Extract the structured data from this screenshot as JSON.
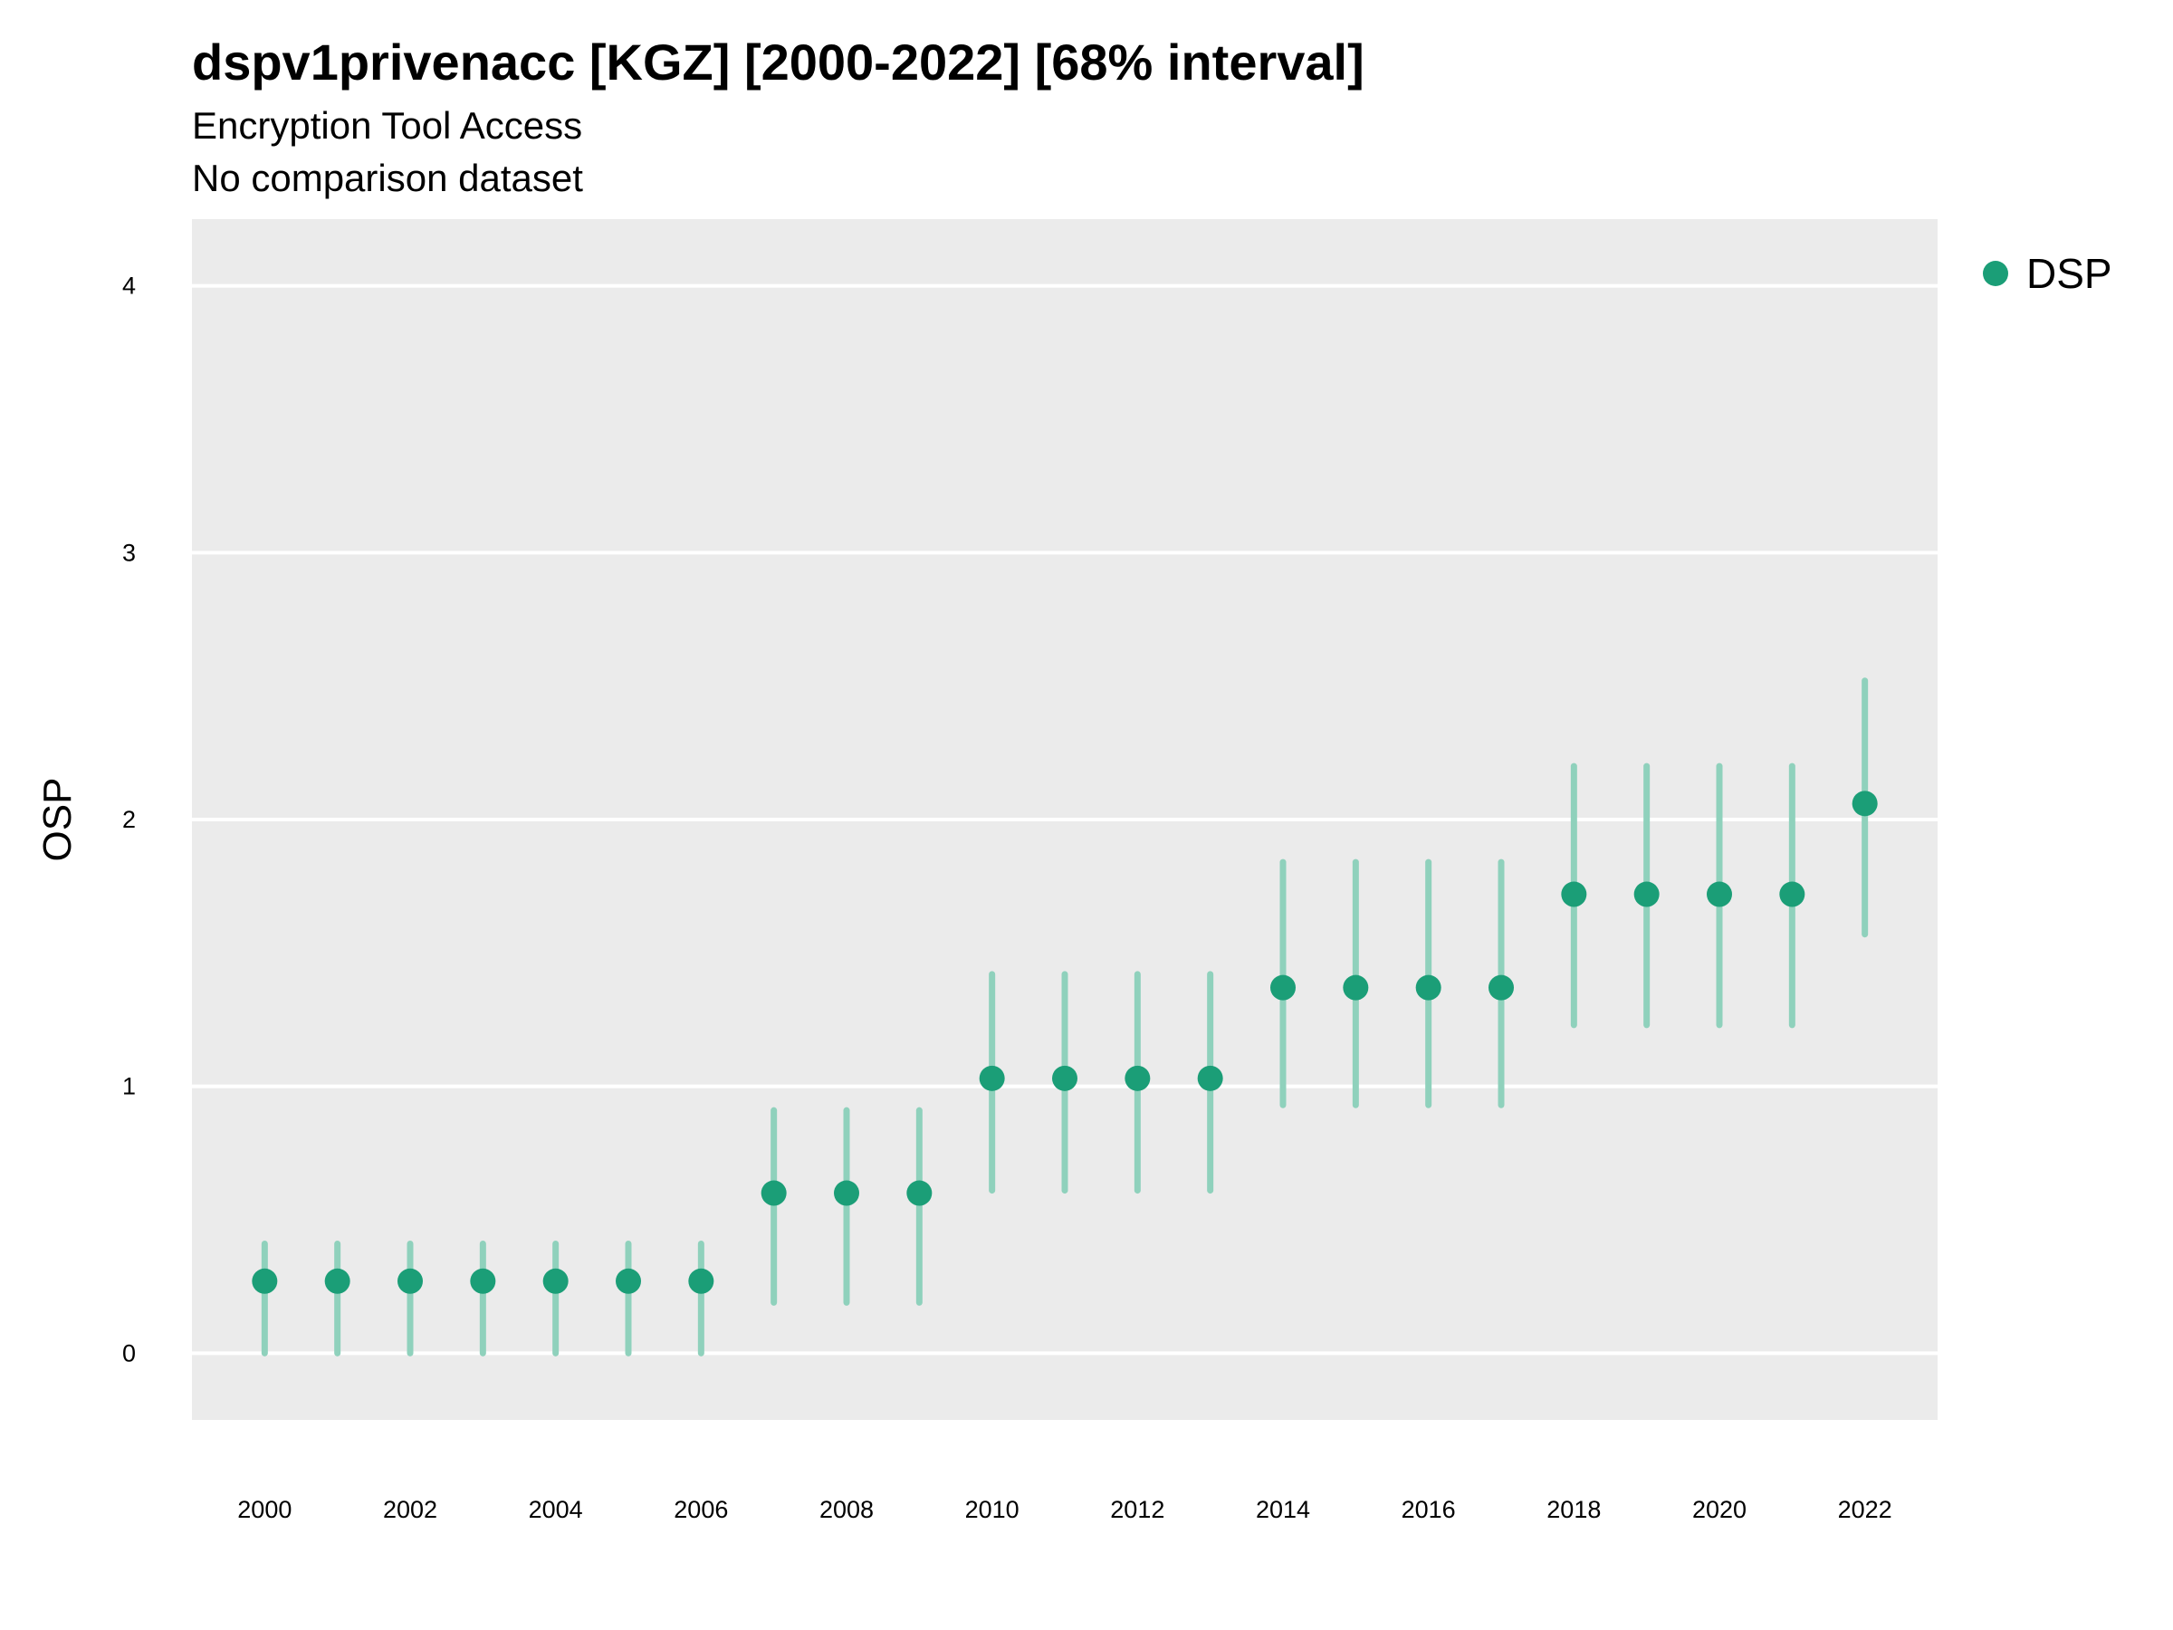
{
  "chart_data": {
    "type": "scatter",
    "title": "dspv1privenacc [KGZ] [2000-2022] [68% interval]",
    "subtitle": [
      "Encryption Tool Access",
      "No comparison dataset"
    ],
    "xlabel": "",
    "ylabel": "OSP",
    "x_ticks": [
      2000,
      2002,
      2004,
      2006,
      2008,
      2010,
      2012,
      2014,
      2016,
      2018,
      2020,
      2022
    ],
    "y_ticks": [
      0,
      1,
      2,
      3,
      4
    ],
    "xlim": [
      1999,
      2023
    ],
    "ylim": [
      -0.25,
      4.25
    ],
    "grid": true,
    "legend_position": "right",
    "colors": {
      "point": "#1b9e77",
      "interval": "#8fd1bc",
      "panel": "#ebebeb",
      "grid": "#ffffff"
    },
    "series": [
      {
        "name": "DSP",
        "x": [
          2000,
          2001,
          2002,
          2003,
          2004,
          2005,
          2006,
          2007,
          2008,
          2009,
          2010,
          2011,
          2012,
          2013,
          2014,
          2015,
          2016,
          2017,
          2018,
          2019,
          2020,
          2021,
          2022
        ],
        "y": [
          0.27,
          0.27,
          0.27,
          0.27,
          0.27,
          0.27,
          0.27,
          0.6,
          0.6,
          0.6,
          1.03,
          1.03,
          1.03,
          1.03,
          1.37,
          1.37,
          1.37,
          1.37,
          1.72,
          1.72,
          1.72,
          1.72,
          2.06
        ],
        "lower": [
          0.0,
          0.0,
          0.0,
          0.0,
          0.0,
          0.0,
          0.0,
          0.19,
          0.19,
          0.19,
          0.61,
          0.61,
          0.61,
          0.61,
          0.93,
          0.93,
          0.93,
          0.93,
          1.23,
          1.23,
          1.23,
          1.23,
          1.57
        ],
        "upper": [
          0.41,
          0.41,
          0.41,
          0.41,
          0.41,
          0.41,
          0.41,
          0.91,
          0.91,
          0.91,
          1.42,
          1.42,
          1.42,
          1.42,
          1.84,
          1.84,
          1.84,
          1.84,
          2.2,
          2.2,
          2.2,
          2.2,
          2.52
        ]
      }
    ]
  }
}
